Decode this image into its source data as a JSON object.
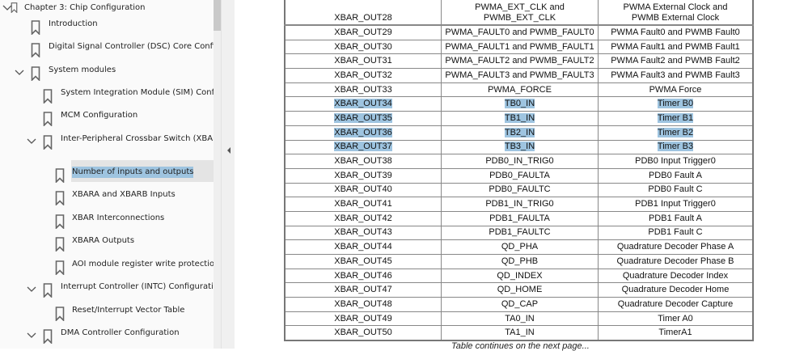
{
  "sidebar": {
    "items": [
      {
        "label": "Chapter 3: Chip Configuration",
        "level": 0,
        "expanded": true
      },
      {
        "label": "Introduction",
        "level": 1
      },
      {
        "label": "Digital Signal Controller (DSC) Core Configuration",
        "level": 1
      },
      {
        "label": "System modules",
        "level": 1,
        "expanded": true
      },
      {
        "label": "System Integration Module (SIM) Configuration",
        "level": 2
      },
      {
        "label": "MCM Configuration",
        "level": 2
      },
      {
        "label": "Inter-Peripheral Crossbar Switch (XBAR) and AOI Configuration",
        "level": 2,
        "expanded": true
      },
      {
        "label": "Number of inputs and outputs",
        "level": 3,
        "selected": true
      },
      {
        "label": "XBARA and XBARB Inputs",
        "level": 3
      },
      {
        "label": "XBAR Interconnections",
        "level": 3
      },
      {
        "label": "XBARA Outputs",
        "level": 3
      },
      {
        "label": "AOI module register write protection",
        "level": 3
      },
      {
        "label": "Interrupt Controller (INTC) Configuration",
        "level": 2,
        "expanded": true
      },
      {
        "label": "Reset/Interrupt Vector Table",
        "level": 3
      },
      {
        "label": "DMA Controller Configuration",
        "level": 2,
        "expanded": true
      }
    ]
  },
  "table": {
    "rows": [
      [
        "XBAR_OUT28",
        "PWMA_EXT_CLK and PWMB_EXT_CLK",
        "PWMA External Clock and PWMB External Clock"
      ],
      [
        "XBAR_OUT29",
        "PWMA_FAULT0 and PWMB_FAULT0",
        "PWMA Fault0 and PWMB Fault0"
      ],
      [
        "XBAR_OUT30",
        "PWMA_FAULT1 and PWMB_FAULT1",
        "PWMA Fault1 and PWMB Fault1"
      ],
      [
        "XBAR_OUT31",
        "PWMA_FAULT2 and PWMB_FAULT2",
        "PWMA Fault2 and PWMB Fault2"
      ],
      [
        "XBAR_OUT32",
        "PWMA_FAULT3 and PWMB_FAULT3",
        "PWMA Fault3 and PWMB Fault3"
      ],
      [
        "XBAR_OUT33",
        "PWMA_FORCE",
        "PWMA Force"
      ],
      [
        "XBAR_OUT34",
        "TB0_IN",
        "Timer B0"
      ],
      [
        "XBAR_OUT35",
        "TB1_IN",
        "Timer B1"
      ],
      [
        "XBAR_OUT36",
        "TB2_IN",
        "Timer B2"
      ],
      [
        "XBAR_OUT37",
        "TB3_IN",
        "Timer B3"
      ],
      [
        "XBAR_OUT38",
        "PDB0_IN_TRIG0",
        "PDB0 Input Trigger0"
      ],
      [
        "XBAR_OUT39",
        "PDB0_FAULTA",
        "PDB0 Fault A"
      ],
      [
        "XBAR_OUT40",
        "PDB0_FAULTC",
        "PDB0 Fault C"
      ],
      [
        "XBAR_OUT41",
        "PDB1_IN_TRIG0",
        "PDB1 Input Trigger0"
      ],
      [
        "XBAR_OUT42",
        "PDB1_FAULTA",
        "PDB1 Fault A"
      ],
      [
        "XBAR_OUT43",
        "PDB1_FAULTC",
        "PDB1 Fault C"
      ],
      [
        "XBAR_OUT44",
        "QD_PHA",
        "Quadrature Decoder Phase A"
      ],
      [
        "XBAR_OUT45",
        "QD_PHB",
        "Quadrature Decoder Phase B"
      ],
      [
        "XBAR_OUT46",
        "QD_INDEX",
        "Quadrature Decoder Index"
      ],
      [
        "XBAR_OUT47",
        "QD_HOME",
        "Quadrature Decoder Home"
      ],
      [
        "XBAR_OUT48",
        "QD_CAP",
        "Quadrature Decoder Capture"
      ],
      [
        "XBAR_OUT49",
        "TA0_IN",
        "Timer A0"
      ],
      [
        "XBAR_OUT50",
        "TA1_IN",
        "TimerA1"
      ]
    ],
    "selected_rows": [
      "XBAR_OUT34",
      "XBAR_OUT35",
      "XBAR_OUT36",
      "XBAR_OUT37"
    ],
    "footer": "Table continues on the next page..."
  },
  "colors": {
    "selection": "#9ec4e0",
    "sidebar_selected": "#e4e4e4"
  }
}
